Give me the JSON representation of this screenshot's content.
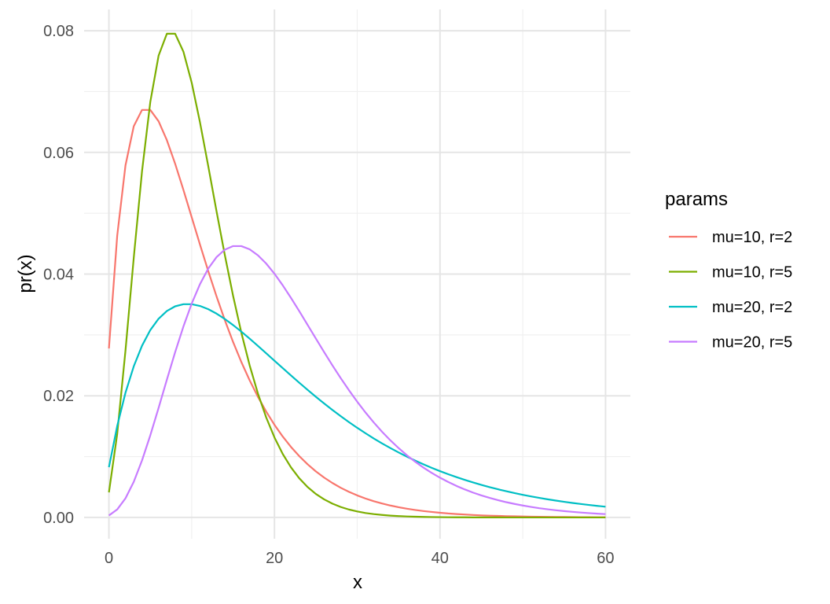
{
  "chart_data": {
    "type": "line",
    "title": "",
    "xlabel": "x",
    "ylabel": "pr(x)",
    "xlim": [
      -3,
      63
    ],
    "ylim": [
      -0.0035,
      0.0835
    ],
    "x_ticks": [
      0,
      20,
      40,
      60
    ],
    "x_tick_labels": [
      "0",
      "20",
      "40",
      "60"
    ],
    "y_ticks": [
      0,
      0.02,
      0.04,
      0.06,
      0.08
    ],
    "y_tick_labels": [
      "0.00",
      "0.02",
      "0.04",
      "0.06",
      "0.08"
    ],
    "grid": true,
    "legend": {
      "title": "params",
      "position": "right"
    },
    "series": [
      {
        "name": "mu=10, r=2",
        "color": "#F8766D",
        "params": {
          "mu": 10,
          "r": 2
        },
        "x": [
          0,
          1,
          2,
          3,
          4,
          5,
          6,
          7,
          8,
          9,
          10,
          11,
          12,
          13,
          14,
          15,
          16,
          17,
          18,
          19,
          20,
          21,
          22,
          23,
          24,
          25,
          26,
          27,
          28,
          29,
          30,
          31,
          32,
          33,
          34,
          35,
          36,
          37,
          38,
          39,
          40,
          41,
          42,
          43,
          44,
          45,
          46,
          47,
          48,
          49,
          50,
          51,
          52,
          53,
          54,
          55,
          56,
          57,
          58,
          59,
          60
        ],
        "y": [
          0.02778,
          0.0463,
          0.05787,
          0.0643,
          0.06698,
          0.06698,
          0.06512,
          0.06201,
          0.05814,
          0.05384,
          0.04935,
          0.04486,
          0.04049,
          0.03634,
          0.03244,
          0.02884,
          0.02554,
          0.02254,
          0.01983,
          0.0174,
          0.01522,
          0.01329,
          0.01158,
          0.01007,
          0.00874,
          0.00757,
          0.00655,
          0.00566,
          0.00488,
          0.00421,
          0.00362,
          0.00311,
          0.00267,
          0.00229,
          0.00196,
          0.00168,
          0.00144,
          0.00123,
          0.00105,
          0.0009,
          0.00077,
          0.00065,
          0.00056,
          0.00048,
          0.0004,
          0.00034,
          0.00029,
          0.00025,
          0.00021,
          0.00018,
          0.00015,
          0.00013,
          0.00011,
          9e-05,
          8e-05,
          7e-05,
          6e-05,
          5e-05,
          4e-05,
          3e-05,
          3e-05
        ]
      },
      {
        "name": "mu=10, r=5",
        "color": "#7CAE00",
        "params": {
          "mu": 10,
          "r": 5
        },
        "x": [
          0,
          1,
          2,
          3,
          4,
          5,
          6,
          7,
          8,
          9,
          10,
          11,
          12,
          13,
          14,
          15,
          16,
          17,
          18,
          19,
          20,
          21,
          22,
          23,
          24,
          25,
          26,
          27,
          28,
          29,
          30,
          31,
          32,
          33,
          34,
          35,
          36,
          37,
          38,
          39,
          40,
          41,
          42,
          43,
          44,
          45,
          46,
          47,
          48,
          49,
          50,
          51,
          52,
          53,
          54,
          55,
          56,
          57,
          58,
          59,
          60
        ],
        "y": [
          0.00412,
          0.01372,
          0.02744,
          0.04269,
          0.05692,
          0.06831,
          0.0759,
          0.07951,
          0.07951,
          0.07656,
          0.07146,
          0.06496,
          0.05775,
          0.05033,
          0.04314,
          0.03643,
          0.03036,
          0.025,
          0.02037,
          0.01644,
          0.01315,
          0.01043,
          0.00822,
          0.00643,
          0.005,
          0.00386,
          0.00297,
          0.00227,
          0.00172,
          0.0013,
          0.00098,
          0.00073,
          0.00055,
          0.00041,
          0.0003,
          0.00022,
          0.00016,
          0.00012,
          9e-05,
          6e-05,
          5e-05,
          3e-05,
          2e-05,
          2e-05,
          1e-05,
          1e-05,
          1e-05,
          1e-05,
          0.0,
          0.0,
          0.0,
          0.0,
          0.0,
          0.0,
          0.0,
          0.0,
          0.0,
          0.0,
          0.0,
          0.0,
          0.0
        ]
      },
      {
        "name": "mu=20, r=2",
        "color": "#00BFC4",
        "params": {
          "mu": 20,
          "r": 2
        },
        "x": [
          0,
          1,
          2,
          3,
          4,
          5,
          6,
          7,
          8,
          9,
          10,
          11,
          12,
          13,
          14,
          15,
          16,
          17,
          18,
          19,
          20,
          21,
          22,
          23,
          24,
          25,
          26,
          27,
          28,
          29,
          30,
          31,
          32,
          33,
          34,
          35,
          36,
          37,
          38,
          39,
          40,
          41,
          42,
          43,
          44,
          45,
          46,
          47,
          48,
          49,
          50,
          51,
          52,
          53,
          54,
          55,
          56,
          57,
          58,
          59,
          60
        ],
        "y": [
          0.00826,
          0.01503,
          0.0205,
          0.02484,
          0.02823,
          0.0308,
          0.03266,
          0.03393,
          0.0347,
          0.03505,
          0.03505,
          0.03476,
          0.03423,
          0.0335,
          0.03262,
          0.03162,
          0.03054,
          0.02939,
          0.0282,
          0.02699,
          0.02576,
          0.02454,
          0.02333,
          0.02214,
          0.02097,
          0.01983,
          0.01873,
          0.01767,
          0.01665,
          0.01567,
          0.01473,
          0.01384,
          0.01298,
          0.01217,
          0.01141,
          0.01068,
          0.00999,
          0.00934,
          0.00873,
          0.00815,
          0.00761,
          0.0071,
          0.00662,
          0.00617,
          0.00575,
          0.00535,
          0.00498,
          0.00463,
          0.00431,
          0.00401,
          0.00372,
          0.00346,
          0.00321,
          0.00298,
          0.00277,
          0.00257,
          0.00238,
          0.00221,
          0.00205,
          0.0019,
          0.00176
        ]
      },
      {
        "name": "mu=20, r=5",
        "color": "#C77CFF",
        "params": {
          "mu": 20,
          "r": 5
        },
        "x": [
          0,
          1,
          2,
          3,
          4,
          5,
          6,
          7,
          8,
          9,
          10,
          11,
          12,
          13,
          14,
          15,
          16,
          17,
          18,
          19,
          20,
          21,
          22,
          23,
          24,
          25,
          26,
          27,
          28,
          29,
          30,
          31,
          32,
          33,
          34,
          35,
          36,
          37,
          38,
          39,
          40,
          41,
          42,
          43,
          44,
          45,
          46,
          47,
          48,
          49,
          50,
          51,
          52,
          53,
          54,
          55,
          56,
          57,
          58,
          59,
          60
        ],
        "y": [
          0.00032,
          0.00131,
          0.00314,
          0.00586,
          0.00938,
          0.0135,
          0.018,
          0.02263,
          0.02716,
          0.03138,
          0.03515,
          0.03834,
          0.0409,
          0.04279,
          0.04401,
          0.0446,
          0.0446,
          0.04407,
          0.04309,
          0.04173,
          0.04006,
          0.03815,
          0.03607,
          0.0339,
          0.03165,
          0.02941,
          0.02718,
          0.025,
          0.0229,
          0.02091,
          0.01902,
          0.01725,
          0.01561,
          0.01408,
          0.01268,
          0.0114,
          0.01022,
          0.00916,
          0.00819,
          0.00732,
          0.00653,
          0.00582,
          0.00517,
          0.0046,
          0.00408,
          0.00362,
          0.00321,
          0.00284,
          0.00251,
          0.00222,
          0.00196,
          0.00173,
          0.00152,
          0.00134,
          0.00118,
          0.00104,
          0.00092,
          0.00081,
          0.00071,
          0.00062,
          0.00055
        ]
      }
    ]
  }
}
